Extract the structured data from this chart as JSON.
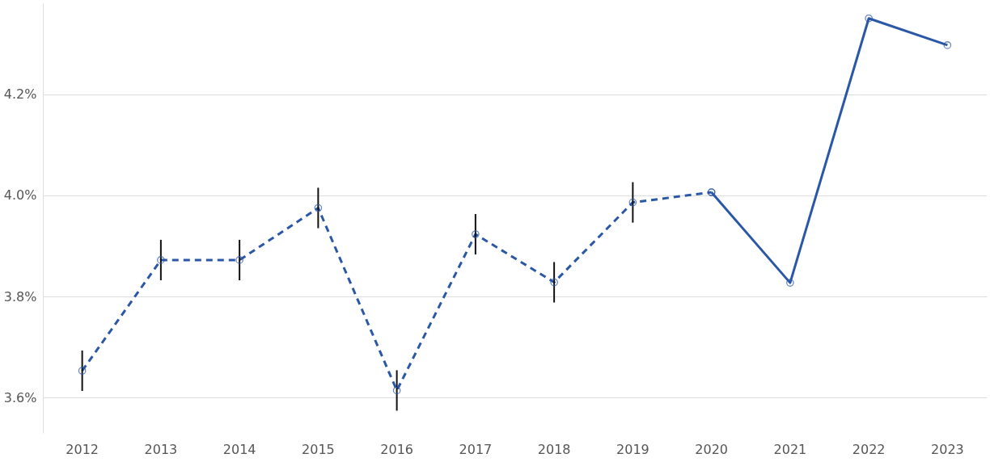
{
  "chart_data": {
    "type": "line",
    "categories": [
      "2012",
      "2013",
      "2014",
      "2015",
      "2016",
      "2017",
      "2018",
      "2019",
      "2020",
      "2021",
      "2022",
      "2023"
    ],
    "series": [
      {
        "color": "#2b57a7",
        "line_style": "dashed",
        "values": [
          3.653,
          3.872,
          3.872,
          3.975,
          3.614,
          3.923,
          3.828,
          3.986,
          4.006,
          null,
          null,
          null
        ],
        "errors": [
          0.04,
          0.04,
          0.04,
          0.04,
          0.04,
          0.04,
          0.04,
          0.04,
          null,
          null,
          null,
          null
        ]
      },
      {
        "color": "#2b57a7",
        "line_style": "solid",
        "values": [
          null,
          null,
          null,
          null,
          null,
          null,
          null,
          null,
          4.006,
          3.827,
          4.35,
          4.297
        ]
      }
    ],
    "ylim": [
      3.53,
      4.38
    ],
    "yticks": [
      {
        "value": 3.6,
        "label": "3.6%"
      },
      {
        "value": 3.8,
        "label": "3.8%"
      },
      {
        "value": 4.0,
        "label": "4.0%"
      },
      {
        "value": 4.2,
        "label": "4.2%"
      }
    ],
    "grid": "y",
    "marker": "circle"
  }
}
